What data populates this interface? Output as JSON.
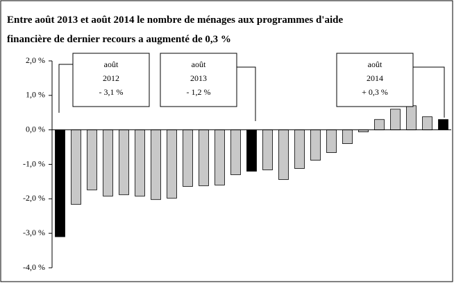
{
  "chart_data": {
    "type": "bar",
    "title_lines": [
      "Entre août 2013 et août 2014 le nombre de ménages aux programmes d'aide",
      "financière de dernier recours a augmenté de 0,3 %"
    ],
    "values": [
      -3.1,
      -2.16,
      -1.74,
      -1.92,
      -1.88,
      -1.92,
      -2.02,
      -1.98,
      -1.64,
      -1.62,
      -1.6,
      -1.3,
      -1.2,
      -1.16,
      -1.44,
      -1.12,
      -0.88,
      -0.66,
      -0.4,
      -0.06,
      0.3,
      0.6,
      0.7,
      0.38,
      0.3
    ],
    "colors": [
      "#000000",
      "#c8c8c8",
      "#c8c8c8",
      "#c8c8c8",
      "#c8c8c8",
      "#c8c8c8",
      "#c8c8c8",
      "#c8c8c8",
      "#c8c8c8",
      "#c8c8c8",
      "#c8c8c8",
      "#c8c8c8",
      "#000000",
      "#c8c8c8",
      "#c8c8c8",
      "#c8c8c8",
      "#c8c8c8",
      "#c8c8c8",
      "#c8c8c8",
      "#c8c8c8",
      "#c8c8c8",
      "#c8c8c8",
      "#c8c8c8",
      "#c8c8c8",
      "#000000"
    ],
    "ylim": [
      -4,
      2
    ],
    "yticks": [
      {
        "value": 2,
        "label": "2,0 %"
      },
      {
        "value": 1,
        "label": "1,0 %"
      },
      {
        "value": 0,
        "label": "0,0 %"
      },
      {
        "value": -1,
        "label": "-1,0 %"
      },
      {
        "value": -2,
        "label": "-2,0 %"
      },
      {
        "value": -3,
        "label": "-3,0 %"
      },
      {
        "value": -4,
        "label": "-4,0 %"
      }
    ],
    "annotations": [
      {
        "lines": [
          "août",
          "2012",
          "- 3,1 %"
        ]
      },
      {
        "lines": [
          "août",
          "2013",
          "- 1,2 %"
        ]
      },
      {
        "lines": [
          "août",
          "2014",
          "+ 0,3 %"
        ]
      }
    ]
  }
}
